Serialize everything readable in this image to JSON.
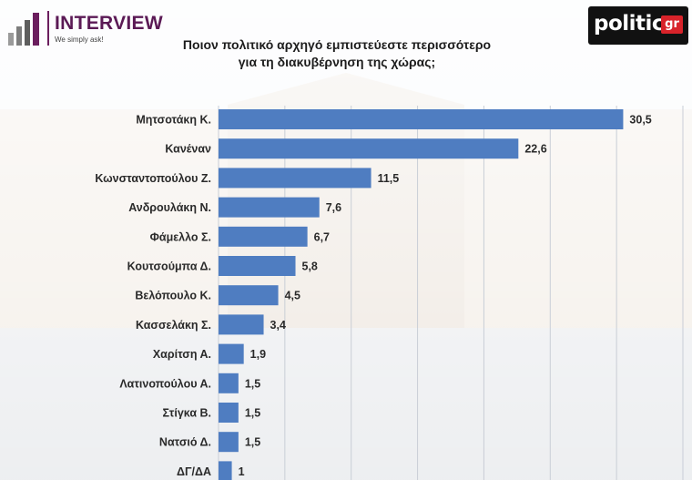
{
  "logos": {
    "left_brand": "INTERVIEW",
    "left_tagline": "We simply ask!",
    "right_brand": "politic",
    "right_suffix": "gr"
  },
  "colors": {
    "bar": "#4f7dc1",
    "brand_interview": "#5b1a55",
    "politic_badge": "#d8232a"
  },
  "chart_data": {
    "type": "bar",
    "orientation": "horizontal",
    "title": "Ποιον πολιτικό αρχηγό εμπιστεύεστε περισσότερο",
    "subtitle": "για τη διακυβέρνηση της χώρας;",
    "xlabel": "",
    "ylabel": "",
    "xlim": [
      0,
      35
    ],
    "grid": true,
    "categories": [
      "Μητσοτάκη Κ.",
      "Κανέναν",
      "Κωνσταντοπούλου Ζ.",
      "Ανδρουλάκη Ν.",
      "Φάμελλο Σ.",
      "Κουτσούμπα Δ.",
      "Βελόπουλο Κ.",
      "Κασσελάκη Σ.",
      "Χαρίτση Α.",
      "Λατινοπούλου Α.",
      "Στίγκα Β.",
      "Νατσιό Δ.",
      "ΔΓ/ΔΑ"
    ],
    "values": [
      30.5,
      22.6,
      11.5,
      7.6,
      6.7,
      5.8,
      4.5,
      3.4,
      1.9,
      1.5,
      1.5,
      1.5,
      1
    ],
    "value_labels": [
      "30,5",
      "22,6",
      "11,5",
      "7,6",
      "6,7",
      "5,8",
      "4,5",
      "3,4",
      "1,9",
      "1,5",
      "1,5",
      "1,5",
      "1"
    ]
  }
}
